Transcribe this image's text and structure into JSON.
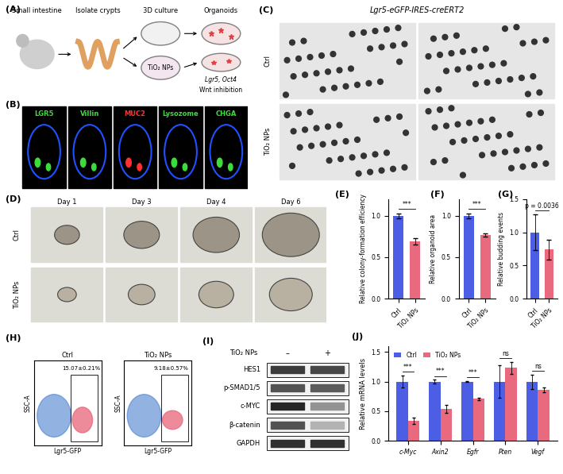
{
  "chart_data": [
    {
      "type": "bar",
      "title": "(E)",
      "categories": [
        "Ctrl",
        "TiO₂ NPs"
      ],
      "values": [
        1.0,
        0.69
      ],
      "errors": [
        0.03,
        0.04
      ],
      "colors": [
        "#4b5ee4",
        "#e96a7e"
      ],
      "ylabel": "Relative colony-formation efficiency",
      "ylim": [
        0,
        1.2
      ],
      "yticks": [
        {
          "value": 0,
          "label": "0.0"
        },
        {
          "value": 0.5,
          "label": "0.5"
        },
        {
          "value": 1,
          "label": "1.0"
        }
      ],
      "annotations": [
        "***"
      ]
    },
    {
      "type": "bar",
      "title": "(F)",
      "categories": [
        "Ctrl",
        "TiO₂ NPs"
      ],
      "values": [
        1.0,
        0.77
      ],
      "errors": [
        0.03,
        0.02
      ],
      "colors": [
        "#4b5ee4",
        "#e96a7e"
      ],
      "ylabel": "Relative organoid area",
      "ylim": [
        0,
        1.2
      ],
      "yticks": [
        {
          "value": 0,
          "label": "0.0"
        },
        {
          "value": 0.5,
          "label": "0.5"
        },
        {
          "value": 1,
          "label": "1.0"
        }
      ],
      "annotations": [
        "***"
      ]
    },
    {
      "type": "bar",
      "title": "(G)",
      "categories": [
        "Ctrl",
        "TiO₂ NPs"
      ],
      "values": [
        1.0,
        0.74
      ],
      "errors": [
        0.27,
        0.15
      ],
      "colors": [
        "#4b5ee4",
        "#e96a7e"
      ],
      "ylabel": "Relative budding events",
      "ylim": [
        0,
        1.5
      ],
      "yticks": [
        {
          "value": 0,
          "label": "0.0"
        },
        {
          "value": 0.5,
          "label": "0.5"
        },
        {
          "value": 1,
          "label": "1.0"
        },
        {
          "value": 1.5,
          "label": "1.5"
        }
      ],
      "annotations": [
        "p = 0.0036"
      ]
    },
    {
      "type": "bar",
      "title": "(J)",
      "categories": [
        "c-Myc",
        "Axin2",
        "Egfr",
        "Pten",
        "Vegf"
      ],
      "series": [
        {
          "name": "Ctrl",
          "color": "#4b5ee4",
          "values": [
            1.0,
            1.0,
            1.0,
            1.0,
            1.0
          ],
          "errors": [
            0.1,
            0.03,
            0.01,
            0.28,
            0.12
          ]
        },
        {
          "name": "TiO₂ NPs",
          "color": "#e96a7e",
          "values": [
            0.34,
            0.54,
            0.71,
            1.23,
            0.86
          ],
          "errors": [
            0.05,
            0.07,
            0.02,
            0.1,
            0.04
          ]
        }
      ],
      "ylabel": "Relative mRNA levels",
      "ylim": [
        0,
        1.6
      ],
      "yticks": [
        {
          "value": 0,
          "label": "0.0"
        },
        {
          "value": 0.5,
          "label": "0.5"
        },
        {
          "value": 1,
          "label": "1.0"
        },
        {
          "value": 1.5,
          "label": "1.5"
        }
      ],
      "legend": "upper left",
      "annotations": [
        "***",
        "***",
        "***",
        "ns",
        "ns"
      ]
    }
  ],
  "panels": {
    "A": {
      "label": "(A)",
      "steps": [
        "Small intestine",
        "Isolate crypts",
        "3D culture",
        "Organoids"
      ],
      "treatment": "TiO₂ NPs",
      "result": [
        "Lgr5, Oct4",
        "Wnt inhibition"
      ]
    },
    "B": {
      "label": "(B)",
      "stains": [
        {
          "name": "LGR5",
          "color": "#3ddc3d"
        },
        {
          "name": "Villin",
          "color": "#3ddc3d"
        },
        {
          "name": "MUC2",
          "color": "#ff3030"
        },
        {
          "name": "Lysozome",
          "color": "#3ddc3d"
        },
        {
          "name": "CHGA",
          "color": "#3ddc3d"
        }
      ]
    },
    "C": {
      "label": "(C)",
      "title": "Lgr5-eGFP-IRES-creERT2",
      "rows": [
        "Ctrl",
        "TiO₂ NPs"
      ]
    },
    "D": {
      "label": "(D)",
      "columns": [
        "Day 1",
        "Day 3",
        "Day 4",
        "Day 6"
      ],
      "rows": [
        "Ctrl",
        "TiO₂ NPs"
      ]
    },
    "H": {
      "label": "(H)",
      "xlabel": "Lgr5-GFP",
      "ylabel": "SSC-A",
      "plots": [
        {
          "title": "Ctrl",
          "gate": "15.07±0.21%"
        },
        {
          "title": "TiO₂ NPs",
          "gate": "9.18±0.57%"
        }
      ]
    },
    "I": {
      "label": "(I)",
      "treatment": "TiO₂ NPs",
      "lanes": [
        "–",
        "+"
      ],
      "proteins": [
        "HES1",
        "p-SMAD1/5",
        "c-MYC",
        "β-catenin",
        "GAPDH"
      ],
      "band_intensity": [
        [
          0.9,
          0.85
        ],
        [
          0.8,
          0.75
        ],
        [
          1.0,
          0.5
        ],
        [
          0.8,
          0.35
        ],
        [
          0.95,
          0.95
        ]
      ]
    }
  }
}
